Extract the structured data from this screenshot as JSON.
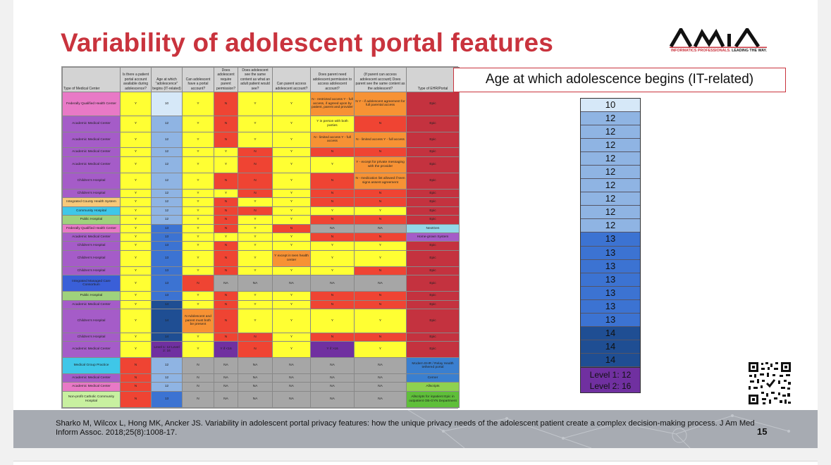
{
  "slide": {
    "title": "Variability of adolescent portal features",
    "logo": {
      "name": "AMIA",
      "tagline_red": "INFORMATICS PROFESSIONALS.",
      "tagline_dark": " LEADING THE WAY."
    },
    "age_panel": {
      "label": "Age at which adolescence begins (IT-related)",
      "ages": [
        "10",
        "12",
        "12",
        "12",
        "12",
        "12",
        "12",
        "12",
        "12",
        "12",
        "13",
        "13",
        "13",
        "13",
        "13",
        "13",
        "13",
        "14",
        "14",
        "14"
      ],
      "level_line1": "Level 1: 12",
      "level_line2": "Level 2: 16"
    },
    "citation": "Sharko M, Wilcox L, Hong MK, Ancker JS. Variability in adolescent portal privacy features: how the unique privacy needs of the adolescent patient create a complex decision-making process. J Am Med Inform Assoc. 2018;25(8):1008-17.",
    "page_number": "15"
  },
  "colors": {
    "title_red": "#c9333d",
    "yellow": "#ffff33",
    "red": "#ef4433",
    "orange": "#f79234",
    "gray": "#a6a6a6",
    "crimson": "#c4323f",
    "cyan": "#92d8e8",
    "purple": "#a55cc8",
    "age_10": "#d6e8f8",
    "age_12": "#8fb4e3",
    "age_13": "#3c73d2",
    "age_14": "#1f4e93",
    "age_level": "#7030a0"
  },
  "table": {
    "headers": [
      "Type of Medical Center",
      "Is there a patient portal account available during adolescence?",
      "Age at which \"adolescence\" begins (IT-related)",
      "Can adolescent have a portal account?",
      "Does adolescent require parent permission?",
      "Does adolescent see the same content as what an adult patient would see?",
      "Can parent access adolescent account?",
      "Does parent need adolescent permission to access adolescent account?",
      "(If parent can access adolescent account) Does parent see the same content as the adolescent?",
      "Type of EHR/Portal"
    ],
    "rows": [
      {
        "cells": [
          "Federally Qualified Health Center",
          "Y",
          "10",
          "Y",
          "N",
          "Y",
          "Y",
          "N - restricted access Y - full access, if agreed upon by patient, parent and provider",
          "N Y - if adolescent agreement for full parental access",
          "Epic"
        ],
        "colors": [
          "#e879c6",
          "#ffff33",
          "#d6e8f8",
          "#ffff33",
          "#ef4433",
          "#ffff33",
          "#ffff33",
          "#f79234",
          "#f79234",
          "#c4323f"
        ]
      },
      {
        "cells": [
          "Academic Medical Center",
          "Y",
          "12",
          "Y",
          "N",
          "Y",
          "Y",
          "Y in person with both parties",
          "N",
          "Epic"
        ],
        "colors": [
          "#a55cc8",
          "#ffff33",
          "#8fb4e3",
          "#ffff33",
          "#ef4433",
          "#ffff33",
          "#ffff33",
          "#ffff33",
          "#ef4433",
          "#c4323f"
        ]
      },
      {
        "cells": [
          "Academic Medical Center",
          "Y",
          "12",
          "Y",
          "N",
          "Y",
          "Y",
          "N - limited access Y - full access",
          "N - limited access Y - full access",
          "Epic"
        ],
        "colors": [
          "#a55cc8",
          "#ffff33",
          "#8fb4e3",
          "#ffff33",
          "#ef4433",
          "#ffff33",
          "#ffff33",
          "#f79234",
          "#f79234",
          "#c4323f"
        ]
      },
      {
        "cells": [
          "Academic Medical Center",
          "Y",
          "12",
          "Y",
          "Y",
          "N",
          "Y",
          "N",
          "N",
          "Epic"
        ],
        "colors": [
          "#a55cc8",
          "#ffff33",
          "#8fb4e3",
          "#ffff33",
          "#ffff33",
          "#ef4433",
          "#ffff33",
          "#ef4433",
          "#ef4433",
          "#c4323f"
        ]
      },
      {
        "cells": [
          "Academic Medical Center",
          "Y",
          "12",
          "Y",
          "Y",
          "N",
          "Y",
          "Y",
          "Y - except for private messaging with the provider",
          "Epic"
        ],
        "colors": [
          "#a55cc8",
          "#ffff33",
          "#8fb4e3",
          "#ffff33",
          "#ffff33",
          "#ef4433",
          "#ffff33",
          "#ffff33",
          "#f79234",
          "#c4323f"
        ]
      },
      {
        "cells": [
          "Children's Hospital",
          "Y",
          "12",
          "Y",
          "N",
          "N",
          "Y",
          "N",
          "N - medication list allowed if teen signs assent agreement",
          "Epic"
        ],
        "colors": [
          "#a55cc8",
          "#ffff33",
          "#8fb4e3",
          "#ffff33",
          "#ef4433",
          "#ef4433",
          "#ffff33",
          "#ef4433",
          "#f79234",
          "#c4323f"
        ]
      },
      {
        "cells": [
          "Children's Hospital",
          "Y",
          "12",
          "Y",
          "Y",
          "N",
          "Y",
          "N",
          "N",
          "Epic"
        ],
        "colors": [
          "#a55cc8",
          "#ffff33",
          "#8fb4e3",
          "#ffff33",
          "#ffff33",
          "#ef4433",
          "#ffff33",
          "#ef4433",
          "#ef4433",
          "#c4323f"
        ]
      },
      {
        "cells": [
          "Integrated County Health System",
          "Y",
          "12",
          "Y",
          "N",
          "Y",
          "Y",
          "N",
          "N",
          "Epic"
        ],
        "colors": [
          "#f7c97a",
          "#ffff33",
          "#8fb4e3",
          "#ffff33",
          "#ef4433",
          "#ffff33",
          "#ffff33",
          "#ef4433",
          "#ef4433",
          "#c4323f"
        ]
      },
      {
        "cells": [
          "Community Hospital",
          "Y",
          "12",
          "Y",
          "N",
          "N",
          "Y",
          "Y",
          "Y",
          "Epic"
        ],
        "colors": [
          "#3fc7e8",
          "#ffff33",
          "#8fb4e3",
          "#ffff33",
          "#ef4433",
          "#ef4433",
          "#ffff33",
          "#ffff33",
          "#ffff33",
          "#c4323f"
        ]
      },
      {
        "cells": [
          "Public Hospital",
          "Y",
          "12",
          "Y",
          "N",
          "Y",
          "Y",
          "N",
          "N",
          "Epic"
        ],
        "colors": [
          "#9fd27c",
          "#ffff33",
          "#8fb4e3",
          "#ffff33",
          "#ef4433",
          "#ffff33",
          "#ffff33",
          "#ef4433",
          "#ef4433",
          "#c4323f"
        ]
      },
      {
        "cells": [
          "Federally Qualified Health Center",
          "Y",
          "13",
          "Y",
          "N",
          "Y",
          "N",
          "NA",
          "NA",
          "NextGen"
        ],
        "colors": [
          "#e879c6",
          "#ffff33",
          "#3c73d2",
          "#ffff33",
          "#ef4433",
          "#ffff33",
          "#ef4433",
          "#a6a6a6",
          "#a6a6a6",
          "#92d8e8"
        ]
      },
      {
        "cells": [
          "Academic Medical Center",
          "Y",
          "13",
          "Y",
          "Y",
          "Y",
          "Y",
          "N",
          "N",
          "Home-grown System"
        ],
        "colors": [
          "#a55cc8",
          "#ffff33",
          "#3c73d2",
          "#ffff33",
          "#ffff33",
          "#ffff33",
          "#ffff33",
          "#ef4433",
          "#ef4433",
          "#a55cc8"
        ]
      },
      {
        "cells": [
          "Children's Hospital",
          "Y",
          "13",
          "Y",
          "N",
          "Y",
          "Y",
          "Y",
          "Y",
          "Epic"
        ],
        "colors": [
          "#a55cc8",
          "#ffff33",
          "#3c73d2",
          "#ffff33",
          "#ef4433",
          "#ffff33",
          "#ffff33",
          "#ffff33",
          "#ffff33",
          "#c4323f"
        ]
      },
      {
        "cells": [
          "Children's Hospital",
          "Y",
          "13",
          "Y",
          "N",
          "Y",
          "Y except in teen health center",
          "Y",
          "Y",
          "Epic"
        ],
        "colors": [
          "#a55cc8",
          "#ffff33",
          "#3c73d2",
          "#ffff33",
          "#ef4433",
          "#ffff33",
          "#f79234",
          "#ffff33",
          "#ffff33",
          "#c4323f"
        ]
      },
      {
        "cells": [
          "Children's Hospital",
          "Y",
          "13",
          "Y",
          "N",
          "Y",
          "Y",
          "Y",
          "N",
          "Epic"
        ],
        "colors": [
          "#a55cc8",
          "#ffff33",
          "#3c73d2",
          "#ffff33",
          "#ef4433",
          "#ffff33",
          "#ffff33",
          "#ffff33",
          "#ef4433",
          "#c4323f"
        ]
      },
      {
        "cells": [
          "Integrated Managed Care Consortium",
          "Y",
          "13",
          "N",
          "NA",
          "NA",
          "NA",
          "NA",
          "NA",
          "Epic"
        ],
        "colors": [
          "#3a5fd8",
          "#ffff33",
          "#3c73d2",
          "#ef4433",
          "#a6a6a6",
          "#a6a6a6",
          "#a6a6a6",
          "#a6a6a6",
          "#a6a6a6",
          "#c4323f"
        ]
      },
      {
        "cells": [
          "Public Hospital",
          "Y",
          "13",
          "Y",
          "N",
          "Y",
          "Y",
          "N",
          "N",
          "Epic"
        ],
        "colors": [
          "#9fd27c",
          "#ffff33",
          "#3c73d2",
          "#ffff33",
          "#ef4433",
          "#ffff33",
          "#ffff33",
          "#ef4433",
          "#ef4433",
          "#c4323f"
        ]
      },
      {
        "cells": [
          "Academic Medical Center",
          "Y",
          "14",
          "Y",
          "N",
          "Y",
          "Y",
          "N",
          "N",
          "Epic"
        ],
        "colors": [
          "#a55cc8",
          "#ffff33",
          "#1f4e93",
          "#ffff33",
          "#ef4433",
          "#ffff33",
          "#ffff33",
          "#ef4433",
          "#ef4433",
          "#c4323f"
        ]
      },
      {
        "cells": [
          "Children's Hospital",
          "Y",
          "14",
          "N Adolescent and parent must both be present",
          "N",
          "Y",
          "Y",
          "Y",
          "Y",
          "Epic"
        ],
        "colors": [
          "#a55cc8",
          "#ffff33",
          "#1f4e93",
          "#f79234",
          "#ef4433",
          "#ffff33",
          "#ffff33",
          "#ffff33",
          "#ffff33",
          "#c4323f"
        ]
      },
      {
        "cells": [
          "Children's Hospital",
          "Y",
          "14",
          "Y",
          "N",
          "N",
          "Y",
          "N",
          "N",
          "Epic"
        ],
        "colors": [
          "#a55cc8",
          "#ffff33",
          "#1f4e93",
          "#ffff33",
          "#ef4433",
          "#ef4433",
          "#ffff33",
          "#ef4433",
          "#ef4433",
          "#c4323f"
        ]
      },
      {
        "cells": [
          "Academic Medical Center",
          "Y",
          "Level 1: 12 Level 2: 16",
          "Y",
          "Y if <16",
          "N",
          "Y",
          "Y if >16",
          "Y",
          "Epic"
        ],
        "colors": [
          "#a55cc8",
          "#ffff33",
          "#7030a0",
          "#ffff33",
          "#7030a0",
          "#ef4433",
          "#ffff33",
          "#7030a0",
          "#ffff33",
          "#c4323f"
        ]
      },
      {
        "cells": [
          "Medical Group Practice",
          "N",
          "12",
          "N",
          "NA",
          "NA",
          "NA",
          "NA",
          "NA",
          "Modern EHR / Relay Health tethered portal"
        ],
        "colors": [
          "#3fc7e8",
          "#ef4433",
          "#8fb4e3",
          "#a6a6a6",
          "#a6a6a6",
          "#a6a6a6",
          "#a6a6a6",
          "#a6a6a6",
          "#a6a6a6",
          "#3a7fd0"
        ]
      },
      {
        "cells": [
          "Academic Medical Center",
          "N",
          "12",
          "N",
          "NA",
          "NA",
          "NA",
          "NA",
          "NA",
          "Cerner"
        ],
        "colors": [
          "#a55cc8",
          "#ef4433",
          "#8fb4e3",
          "#a6a6a6",
          "#a6a6a6",
          "#a6a6a6",
          "#a6a6a6",
          "#a6a6a6",
          "#a6a6a6",
          "#3a7fd0"
        ]
      },
      {
        "cells": [
          "Academic Medical Center",
          "N",
          "12",
          "N",
          "NA",
          "NA",
          "NA",
          "NA",
          "NA",
          "Allscripts"
        ],
        "colors": [
          "#e879c6",
          "#ef4433",
          "#8fb4e3",
          "#a6a6a6",
          "#a6a6a6",
          "#a6a6a6",
          "#a6a6a6",
          "#a6a6a6",
          "#a6a6a6",
          "#8fd14f"
        ]
      },
      {
        "cells": [
          "Non-profit Catholic Community Hospital",
          "N",
          "13",
          "N",
          "NA",
          "NA",
          "NA",
          "NA",
          "NA",
          "Allscripts for inpatient Epic in outpatient OB-GYN Department"
        ],
        "colors": [
          "#c8f0a0",
          "#ef4433",
          "#3c73d2",
          "#a6a6a6",
          "#a6a6a6",
          "#a6a6a6",
          "#a6a6a6",
          "#a6a6a6",
          "#a6a6a6",
          "#5fbf3a"
        ]
      }
    ]
  }
}
